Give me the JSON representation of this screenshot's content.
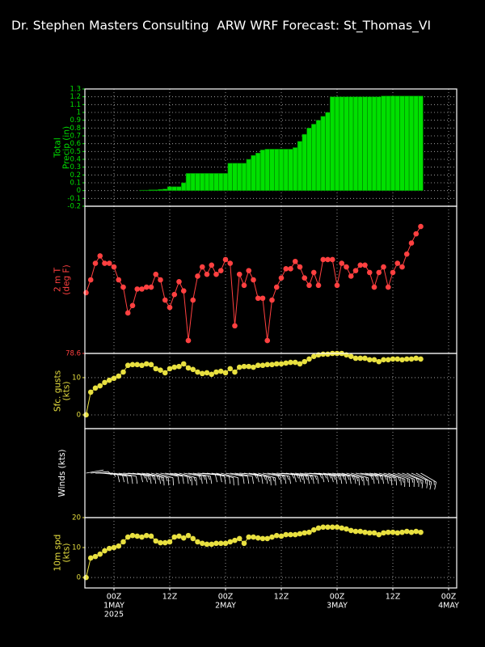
{
  "title": "Dr. Stephen Masters Consulting  ARW WRF Forecast: St_Thomas_VI",
  "chart_data": [
    {
      "type": "bar",
      "ylabel": [
        "Total",
        "Precip (in)"
      ],
      "color": "#00e000",
      "x": [
        -6,
        -5,
        -4,
        -3,
        -2,
        -1,
        0,
        1,
        2,
        3,
        4,
        5,
        6,
        7,
        8,
        9,
        10,
        11,
        12,
        13,
        14,
        15,
        16,
        17,
        18,
        19,
        20,
        21,
        22,
        23,
        24,
        25,
        26,
        27,
        28,
        29,
        30,
        31,
        32,
        33,
        34,
        35,
        36,
        37,
        38,
        39,
        40,
        41,
        42,
        43,
        44,
        45,
        46,
        47,
        48,
        49,
        50,
        51,
        52,
        53,
        54,
        55,
        56,
        57,
        58,
        59,
        60,
        61,
        62,
        63,
        64,
        65,
        66
      ],
      "values": [
        0,
        0,
        0,
        0,
        0,
        0,
        0,
        0,
        0,
        0,
        0,
        0,
        0.005,
        0.005,
        0.01,
        0.01,
        0.015,
        0.02,
        0.05,
        0.05,
        0.05,
        0.1,
        0.22,
        0.22,
        0.22,
        0.22,
        0.22,
        0.22,
        0.22,
        0.22,
        0.22,
        0.35,
        0.35,
        0.35,
        0.35,
        0.4,
        0.45,
        0.48,
        0.52,
        0.53,
        0.53,
        0.53,
        0.53,
        0.53,
        0.53,
        0.55,
        0.63,
        0.72,
        0.8,
        0.85,
        0.9,
        0.95,
        1.0,
        1.2,
        1.2,
        1.2,
        1.2,
        1.2,
        1.2,
        1.2,
        1.2,
        1.2,
        1.2,
        1.2,
        1.21,
        1.21,
        1.21,
        1.21,
        1.21,
        1.21,
        1.21,
        1.21,
        1.21
      ],
      "ylim": [
        -0.2,
        1.3
      ],
      "yticks": [
        -0.2,
        -0.1,
        0,
        0.1,
        0.2,
        0.3,
        0.4,
        0.5,
        0.6,
        0.7,
        0.8,
        0.9,
        1,
        1.1,
        1.2,
        1.3
      ],
      "grid": true
    },
    {
      "type": "line",
      "ylabel": [
        "2 m T",
        "(deg F)"
      ],
      "color": "#ff4040",
      "values": [
        81.9,
        82.6,
        83.5,
        83.9,
        83.5,
        83.5,
        83.3,
        82.6,
        82.2,
        80.8,
        81.2,
        82.1,
        82.1,
        82.2,
        82.2,
        82.9,
        82.6,
        81.5,
        81.1,
        81.8,
        82.5,
        82.0,
        79.3,
        81.5,
        82.8,
        83.3,
        82.9,
        83.4,
        82.9,
        83.1,
        83.7,
        83.5,
        80.1,
        82.9,
        82.3,
        83.1,
        82.6,
        81.6,
        81.6,
        79.3,
        81.5,
        82.2,
        82.7,
        83.2,
        83.2,
        83.6,
        83.3,
        82.7,
        82.3,
        83.0,
        82.3,
        83.7,
        83.7,
        83.7,
        82.3,
        83.5,
        83.3,
        82.8,
        83.1,
        83.4,
        83.4,
        83.0,
        82.2,
        83.0,
        83.3,
        82.2,
        83.0,
        83.5,
        83.3,
        84.0,
        84.6,
        85.1,
        85.5
      ],
      "ylim": [
        78.6,
        86.6
      ],
      "yticks": [
        78.6
      ],
      "grid": false
    },
    {
      "type": "line",
      "ylabel": [
        "Sfc. gusts",
        "(kts)"
      ],
      "color": "#e8e040",
      "values": [
        0,
        6.1,
        7.2,
        7.8,
        8.7,
        9.3,
        9.8,
        10.4,
        11.5,
        13.3,
        13.5,
        13.5,
        13.3,
        13.7,
        13.5,
        12.4,
        12.0,
        11.3,
        12.4,
        12.8,
        13.0,
        13.7,
        12.6,
        12.2,
        11.5,
        11.1,
        11.3,
        10.9,
        11.5,
        11.7,
        11.3,
        12.4,
        11.5,
        12.8,
        13.0,
        13.0,
        12.8,
        13.3,
        13.3,
        13.5,
        13.5,
        13.7,
        13.7,
        13.9,
        14.1,
        14.1,
        13.7,
        14.3,
        15.0,
        15.7,
        16.1,
        16.3,
        16.3,
        16.5,
        16.5,
        16.5,
        16.1,
        15.7,
        15.2,
        15.2,
        15.2,
        14.8,
        14.8,
        14.3,
        14.8,
        14.8,
        15.0,
        15.0,
        14.8,
        15.0,
        15.0,
        15.2,
        15.0
      ],
      "ylim": [
        -3.7,
        16.5
      ],
      "yticks": [
        0,
        10
      ],
      "grid": true
    },
    {
      "type": "barbs",
      "ylabel": [
        "Winds (kts)"
      ],
      "color": "#ffffff",
      "values": [
        80,
        85,
        90,
        95,
        95,
        100,
        100,
        100,
        95,
        95,
        100,
        100,
        100,
        105,
        105,
        105,
        100,
        100,
        100,
        105,
        105,
        100,
        100,
        100,
        95,
        95,
        100,
        100,
        105,
        105,
        100,
        100,
        100,
        95,
        100,
        100,
        105,
        105,
        100,
        100,
        100,
        95,
        95,
        100,
        100,
        100,
        100,
        95,
        95,
        95,
        100,
        100,
        100,
        100,
        100,
        105,
        105,
        105,
        100,
        100,
        100,
        100,
        105,
        105,
        105,
        110,
        110,
        110,
        110,
        115,
        115,
        120,
        120
      ]
    },
    {
      "type": "line",
      "ylabel": [
        "10m spd",
        "(kts)"
      ],
      "color": "#e8e040",
      "values": [
        0,
        6.5,
        7.0,
        7.8,
        8.9,
        9.7,
        10.0,
        10.5,
        11.9,
        13.5,
        14.0,
        13.8,
        13.5,
        14.0,
        13.8,
        12.2,
        11.6,
        11.6,
        11.9,
        13.5,
        13.8,
        13.2,
        14.0,
        13.0,
        11.9,
        11.4,
        11.1,
        11.1,
        11.4,
        11.4,
        11.4,
        11.9,
        12.4,
        13.0,
        11.4,
        13.5,
        13.5,
        13.2,
        13.0,
        13.0,
        13.5,
        14.0,
        13.8,
        14.3,
        14.3,
        14.3,
        14.6,
        14.9,
        15.1,
        15.9,
        16.5,
        16.8,
        16.8,
        16.8,
        16.8,
        16.5,
        16.2,
        15.7,
        15.4,
        15.4,
        15.1,
        14.9,
        14.9,
        14.3,
        14.9,
        15.1,
        15.1,
        14.9,
        15.1,
        15.4,
        15.1,
        15.4,
        15.1
      ],
      "ylim": [
        -3.5,
        20
      ],
      "yticks": [
        0,
        10,
        20
      ],
      "grid": true,
      "xlim": [
        -6.26,
        73.74
      ],
      "xticks": [
        {
          "value": 0,
          "label": "00Z"
        },
        {
          "value": 12,
          "label": "12Z"
        },
        {
          "value": 24,
          "label": "00Z"
        },
        {
          "value": 36,
          "label": "12Z"
        },
        {
          "value": 48,
          "label": "00Z"
        },
        {
          "value": 60,
          "label": "12Z"
        },
        {
          "value": 72,
          "label": "00Z"
        }
      ],
      "date_labels": [
        {
          "value": 0,
          "label": "1MAY"
        },
        {
          "value": 24,
          "label": "2MAY"
        },
        {
          "value": 48,
          "label": "3MAY"
        },
        {
          "value": 72,
          "label": "4MAY"
        }
      ],
      "year_label": "2025"
    }
  ]
}
